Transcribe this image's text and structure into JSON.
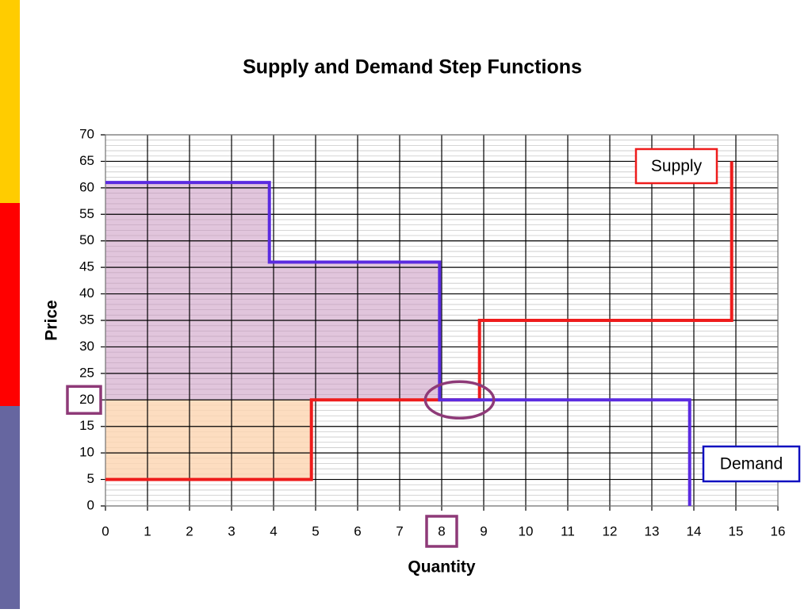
{
  "chart_data": {
    "type": "step",
    "title": "Supply and Demand Step Functions",
    "x_label": "Quantity",
    "y_label": "Price",
    "xlim": [
      0,
      16
    ],
    "xticks": [
      0,
      1,
      2,
      3,
      4,
      5,
      6,
      7,
      8,
      9,
      10,
      11,
      12,
      13,
      14,
      15,
      16
    ],
    "ylim": [
      0,
      70
    ],
    "yticks": [
      0,
      5,
      10,
      15,
      20,
      25,
      30,
      35,
      40,
      45,
      50,
      55,
      60,
      65,
      70
    ],
    "grid": true,
    "series": [
      {
        "name": "Supply",
        "color": "#ee1c1c",
        "x": [
          0,
          4.9,
          4.9,
          8.9,
          8.9,
          14.9,
          14.9
        ],
        "values": [
          5,
          5,
          20,
          20,
          35,
          35,
          65
        ]
      },
      {
        "name": "Demand",
        "color": "#5b2be0",
        "x": [
          0,
          3.9,
          3.9,
          7.95,
          7.95,
          13.9,
          13.9
        ],
        "values": [
          61,
          61,
          46,
          46,
          20,
          20,
          0
        ]
      }
    ],
    "highlight": {
      "price": 20,
      "quantity": 8
    }
  }
}
